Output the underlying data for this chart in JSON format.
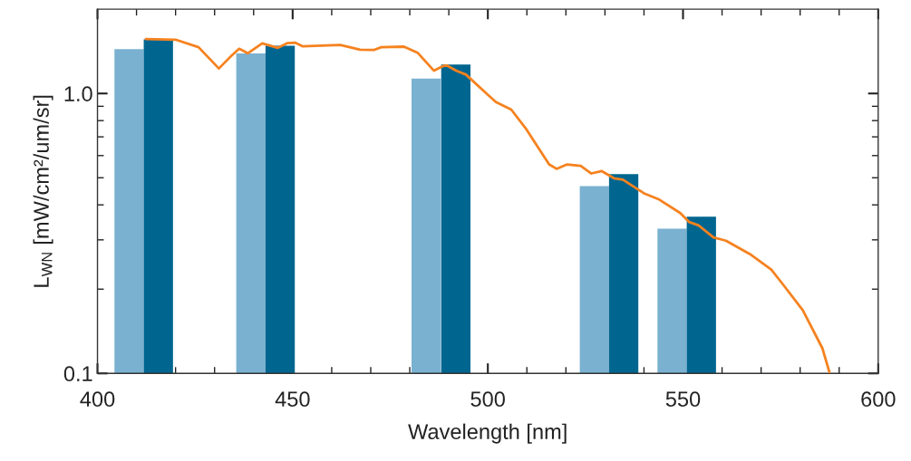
{
  "chart_data": {
    "type": "bar",
    "xlabel": "Wavelength [nm]",
    "ylabel": "L$_{WN}$ [mW/cm²/um/sr]",
    "log": "y",
    "grid": false,
    "legend": false,
    "xlim": [
      400,
      600
    ],
    "ylim": [
      0.1,
      2
    ],
    "xticks": [
      400,
      {
        "value": 410,
        "label": null
      },
      {
        "value": 420,
        "label": null
      },
      {
        "value": 430,
        "label": null
      },
      {
        "value": 440,
        "label": null
      },
      450,
      {
        "value": 460,
        "label": null
      },
      {
        "value": 470,
        "label": null
      },
      {
        "value": 480,
        "label": null
      },
      {
        "value": 490,
        "label": null
      },
      500,
      {
        "value": 510,
        "label": null
      },
      {
        "value": 520,
        "label": null
      },
      {
        "value": 530,
        "label": null
      },
      {
        "value": 540,
        "label": null
      },
      550,
      {
        "value": 560,
        "label": null
      },
      {
        "value": 570,
        "label": null
      },
      {
        "value": 580,
        "label": null
      },
      {
        "value": 590,
        "label": null
      },
      600
    ],
    "yticks": [
      {
        "value": 0.1,
        "label": "0.1"
      },
      {
        "value": 0.2,
        "label": null
      },
      {
        "value": 0.3,
        "label": null
      },
      {
        "value": 0.4,
        "label": null
      },
      {
        "value": 0.5,
        "label": null
      },
      {
        "value": 0.6,
        "label": null
      },
      {
        "value": 0.7,
        "label": null
      },
      {
        "value": 0.8,
        "label": null
      },
      {
        "value": 0.9,
        "label": null
      },
      {
        "value": 1,
        "label": "1.0"
      }
    ],
    "series": [
      {
        "color": "#7ab1d0",
        "x": [
          408.1,
          439.3,
          484.2,
          527.3,
          547.2
        ],
        "values": [
          1.44,
          1.39,
          1.13,
          0.467,
          0.329
        ]
      },
      {
        "color": "#006690",
        "x": [
          415.6,
          446.8,
          491.8,
          534.8,
          554.7
        ],
        "values": [
          1.56,
          1.48,
          1.27,
          0.515,
          0.363
        ]
      },
      {
        "type": "line",
        "color": "#f5821f",
        "marker": "none",
        "line_style": "solid",
        "x": [
          412.4,
          420.0,
          425.9,
          431.1,
          434.4,
          436.3,
          438.5,
          442.2,
          446.2,
          448.7,
          450.6,
          452.6,
          462.2,
          467.3,
          470.8,
          472.7,
          478.5,
          482.0,
          486.2,
          488.5,
          489.5,
          492.0,
          494.4,
          499.9,
          502.1,
          506.0,
          509.9,
          515.7,
          517.6,
          520.3,
          523.8,
          526.5,
          529.2,
          532.3,
          534.6,
          540.0,
          543.9,
          549.3,
          551.6,
          554.0,
          557.8,
          561.0,
          567.1,
          572.6,
          575.6,
          580.7,
          585.7,
          587.5
        ],
        "values": [
          1.566,
          1.557,
          1.463,
          1.228,
          1.368,
          1.445,
          1.392,
          1.51,
          1.456,
          1.514,
          1.52,
          1.474,
          1.49,
          1.434,
          1.43,
          1.463,
          1.47,
          1.399,
          1.206,
          1.253,
          1.259,
          1.204,
          1.168,
          0.992,
          0.932,
          0.876,
          0.744,
          0.558,
          0.538,
          0.558,
          0.551,
          0.518,
          0.528,
          0.498,
          0.492,
          0.44,
          0.418,
          0.374,
          0.347,
          0.338,
          0.306,
          0.298,
          0.267,
          0.235,
          0.208,
          0.168,
          0.123,
          0.101
        ]
      }
    ]
  }
}
